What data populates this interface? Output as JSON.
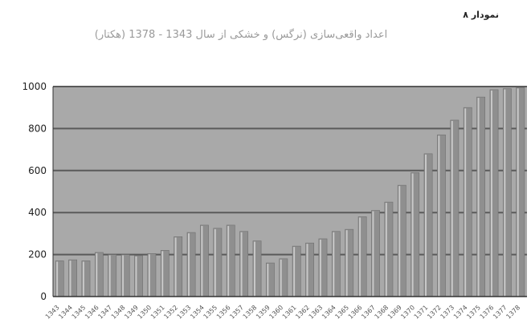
{
  "figure_label": "نمودار ۸",
  "figure_title": "اعداد واقعی‌سازی (نرگس) و خشکی از سال 1343 - 1378 (هکتار)",
  "colors": {
    "plot_background": "#a9a9a9",
    "bar_fill": "#8f8f8f",
    "bar_highlight": "#c8c8c8",
    "gridline": "#5a5a5a",
    "axis_text": "#222222"
  },
  "chart_data": {
    "type": "bar",
    "title": "اعداد واقعی‌سازی (نرگس) و خشکی از سال 1343 - 1378 (هکتار)",
    "xlabel": "",
    "ylabel": "",
    "ylim": [
      0,
      1000
    ],
    "yticks": [
      0,
      200,
      400,
      600,
      800,
      1000
    ],
    "grid": true,
    "legend": "none",
    "categories": [
      "1343",
      "1344",
      "1345",
      "1346",
      "1347",
      "1348",
      "1349",
      "1350",
      "1351",
      "1352",
      "1353",
      "1354",
      "1355",
      "1356",
      "1357",
      "1358",
      "1359",
      "1360",
      "1361",
      "1362",
      "1363",
      "1364",
      "1365",
      "1366",
      "1367",
      "1368",
      "1369",
      "1370",
      "1371",
      "1372",
      "1373",
      "1374",
      "1375",
      "1376",
      "1377",
      "1378"
    ],
    "values": [
      170,
      175,
      170,
      210,
      200,
      200,
      195,
      205,
      220,
      285,
      305,
      340,
      325,
      340,
      310,
      265,
      160,
      180,
      240,
      255,
      275,
      310,
      320,
      380,
      410,
      450,
      530,
      590,
      680,
      770,
      840,
      900,
      950,
      985,
      990,
      995
    ]
  }
}
